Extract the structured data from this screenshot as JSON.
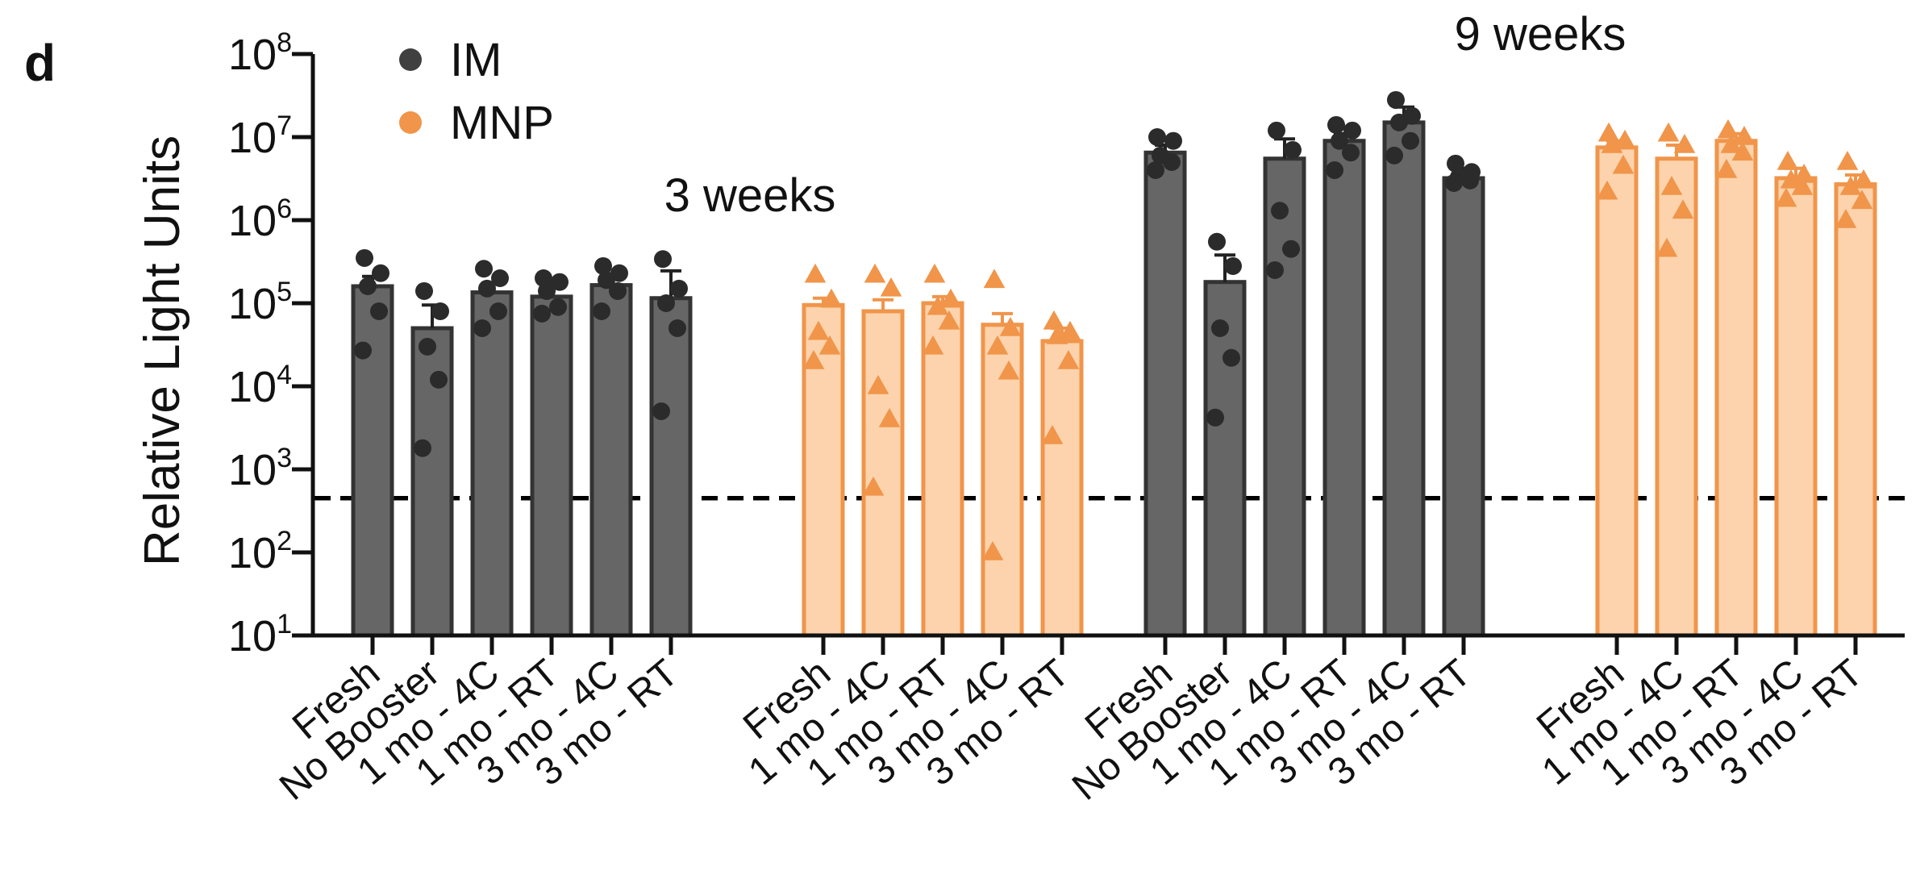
{
  "panel_label": "d",
  "chart_data": {
    "type": "bar",
    "title": "",
    "ylabel": "Relative Light Units",
    "xlabel": "",
    "yscale": "log",
    "ylim": [
      10,
      100000000
    ],
    "yticks": [
      {
        "value": 10,
        "base": "10",
        "exp": "1"
      },
      {
        "value": 100,
        "base": "10",
        "exp": "2"
      },
      {
        "value": 1000,
        "base": "10",
        "exp": "3"
      },
      {
        "value": 10000,
        "base": "10",
        "exp": "4"
      },
      {
        "value": 100000,
        "base": "10",
        "exp": "5"
      },
      {
        "value": 1000000,
        "base": "10",
        "exp": "6"
      },
      {
        "value": 10000000,
        "base": "10",
        "exp": "7"
      },
      {
        "value": 100000000,
        "base": "10",
        "exp": "8"
      }
    ],
    "threshold": 450,
    "legend": {
      "placement": "top-left",
      "entries": [
        {
          "label": "IM",
          "color": "#404040",
          "marker": "circle"
        },
        {
          "label": "MNP",
          "color": "#f0954a",
          "marker": "circle"
        }
      ]
    },
    "group_labels": [
      "3 weeks",
      "9 weeks"
    ],
    "colors": {
      "im_fill": "#666666",
      "im_edge": "#333333",
      "im_point": "#2b2b2b",
      "mnp_fill": "#fcd3ac",
      "mnp_edge": "#f0954a",
      "mnp_point": "#f0954a"
    },
    "series": [
      {
        "name": "IM",
        "timepoint": "3 weeks",
        "marker": "circle",
        "categories": [
          "Fresh",
          "No Booster",
          "1 mo - 4C",
          "1 mo - RT",
          "3 mo - 4C",
          "3 mo - RT"
        ],
        "values": [
          160000,
          50000,
          135000,
          120000,
          165000,
          115000
        ],
        "errors": [
          50000,
          45000,
          40000,
          35000,
          45000,
          130000
        ],
        "points": [
          [
            350000,
            230000,
            160000,
            80000,
            27000
          ],
          [
            140000,
            80000,
            30000,
            12000,
            1800
          ],
          [
            260000,
            200000,
            150000,
            80000,
            50000
          ],
          [
            200000,
            180000,
            140000,
            90000,
            75000
          ],
          [
            280000,
            230000,
            190000,
            140000,
            80000
          ],
          [
            340000,
            150000,
            100000,
            50000,
            5000
          ]
        ]
      },
      {
        "name": "MNP",
        "timepoint": "3 weeks",
        "marker": "triangle",
        "categories": [
          "Fresh",
          "1 mo - 4C",
          "1 mo - RT",
          "3 mo - 4C",
          "3 mo - RT"
        ],
        "values": [
          95000,
          80000,
          100000,
          55000,
          35000
        ],
        "errors": [
          20000,
          30000,
          20000,
          20000,
          15000
        ],
        "points": [
          [
            220000,
            110000,
            45000,
            30000,
            20000
          ],
          [
            220000,
            150000,
            10000,
            4000,
            600
          ],
          [
            220000,
            110000,
            90000,
            60000,
            30000
          ],
          [
            190000,
            50000,
            30000,
            15000,
            100
          ],
          [
            60000,
            45000,
            40000,
            20000,
            2500
          ]
        ]
      },
      {
        "name": "IM",
        "timepoint": "9 weeks",
        "marker": "circle",
        "categories": [
          "Fresh",
          "No Booster",
          "1 mo - 4C",
          "1 mo - RT",
          "3 mo - 4C",
          "3 mo - RT"
        ],
        "values": [
          6500000,
          180000,
          5500000,
          9000000,
          15000000,
          3200000
        ],
        "errors": [
          1500000,
          200000,
          4000000,
          2000000,
          8000000,
          1000000
        ],
        "points": [
          [
            10000000,
            9000000,
            6000000,
            5000000,
            4000000
          ],
          [
            550000,
            280000,
            50000,
            22000,
            4200
          ],
          [
            12000000,
            7000000,
            1300000,
            450000,
            250000
          ],
          [
            14000000,
            12000000,
            9000000,
            6500000,
            4000000
          ],
          [
            28000000,
            18000000,
            15000000,
            9000000,
            6000000
          ],
          [
            4800000,
            3800000,
            3300000,
            3000000,
            2800000
          ]
        ]
      },
      {
        "name": "MNP",
        "timepoint": "9 weeks",
        "marker": "triangle",
        "categories": [
          "Fresh",
          "1 mo - 4C",
          "1 mo - RT",
          "3 mo - 4C",
          "3 mo - RT"
        ],
        "values": [
          7500000,
          5500000,
          9000000,
          3200000,
          2700000
        ],
        "errors": [
          1500000,
          2500000,
          2000000,
          1000000,
          800000
        ],
        "points": [
          [
            11000000,
            9000000,
            8000000,
            4500000,
            2200000
          ],
          [
            11000000,
            8000000,
            2500000,
            1300000,
            450000
          ],
          [
            12000000,
            10000000,
            8000000,
            6500000,
            4000000
          ],
          [
            5000000,
            3500000,
            3000000,
            2500000,
            1800000
          ],
          [
            5000000,
            3000000,
            2500000,
            1700000,
            1000000
          ]
        ]
      }
    ]
  }
}
